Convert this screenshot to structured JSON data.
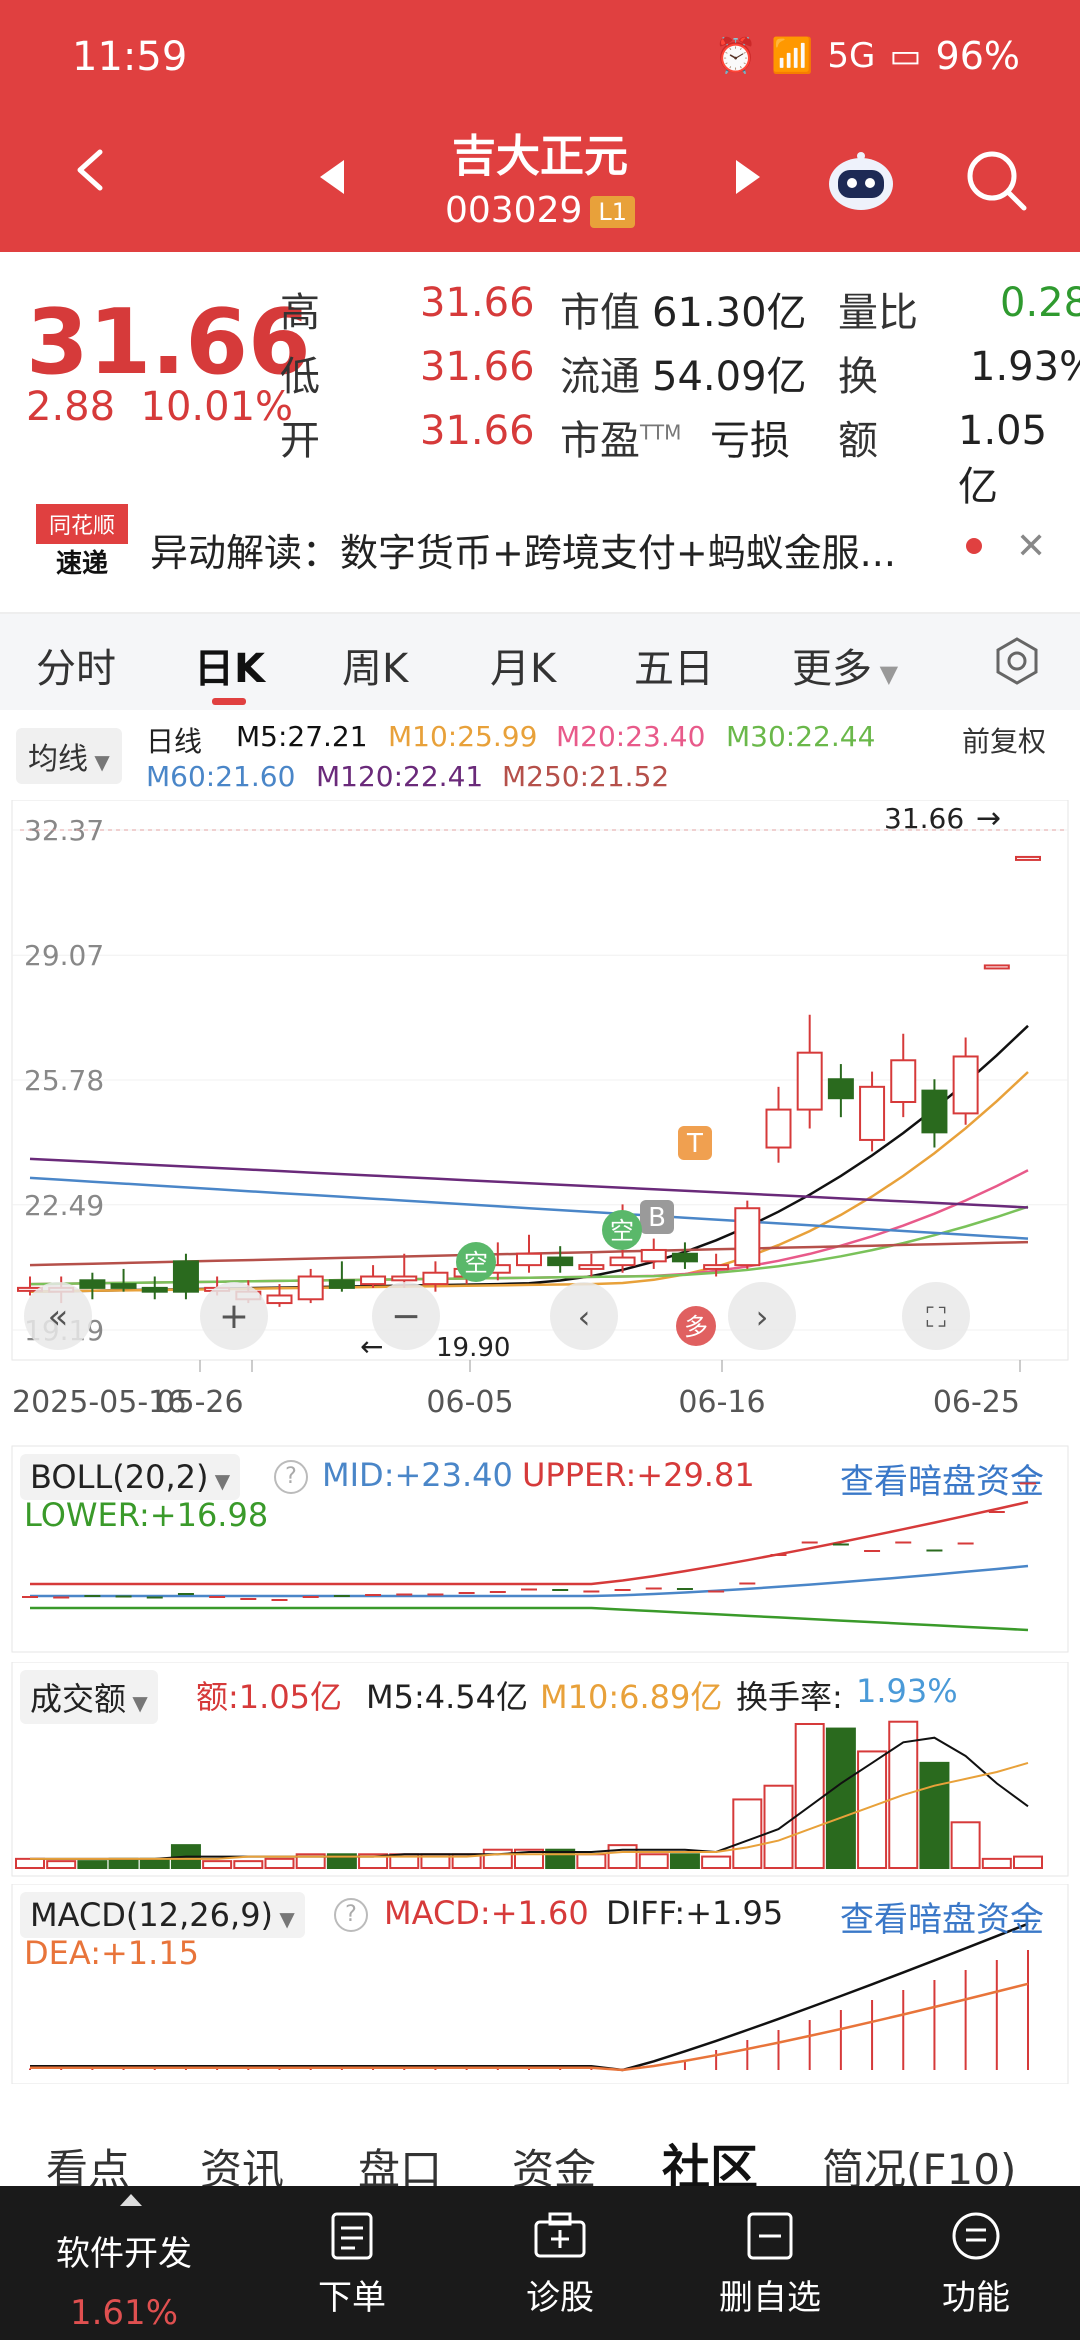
{
  "status": {
    "time": "11:59",
    "network": "5G",
    "battery": "96%"
  },
  "header": {
    "name": "吉大正元",
    "code": "003029",
    "level": "L1"
  },
  "quote": {
    "price": "31.66",
    "change": "2.88",
    "change_pct": "10.01%",
    "high_label": "高",
    "high": "31.66",
    "low_label": "低",
    "low": "31.66",
    "open_label": "开",
    "open": "31.66",
    "mcap_label": "市值",
    "mcap": "61.30亿",
    "float_label": "流通",
    "float": "54.09亿",
    "pe_label": "市盈",
    "pe_tm": "TTM",
    "pe": "亏损",
    "vr_label": "量比",
    "vr": "0.28",
    "turn_label": "换",
    "turn": "1.93%",
    "amt_label": "额",
    "amt": "1.05亿"
  },
  "news": {
    "logo_top": "同花顺",
    "logo_bottom": "速递",
    "text": "异动解读：数字货币+跨境支付+蚂蚁金服..."
  },
  "period_tabs": {
    "t1": "分时",
    "t2": "日K",
    "t3": "周K",
    "t4": "月K",
    "t5": "五日",
    "t6": "更多"
  },
  "ma_legend": {
    "select": "均线",
    "kind": "日线",
    "adjust": "前复权",
    "m5": "M5:27.21",
    "m10": "M10:25.99",
    "m20": "M20:23.40",
    "m30": "M30:22.44",
    "m60": "M60:21.60",
    "m120": "M120:22.41",
    "m250": "M250:21.52"
  },
  "kchart": {
    "y_ticks": [
      "32.37",
      "29.07",
      "25.78",
      "22.49",
      "19.19"
    ],
    "x_ticks": [
      "2025-05-16",
      "05-26",
      "06-05",
      "06-16",
      "06-25"
    ],
    "last_price": "31.66",
    "low_mark": "19.90",
    "badge_t": "T",
    "badge_b": "B",
    "badge_kong": "空",
    "badge_duo": "多",
    "colors": {
      "ma5": "#111111",
      "ma10": "#e8a13a",
      "ma20": "#e85a8a",
      "ma30": "#7ac25a",
      "ma60": "#4a86c8",
      "ma120": "#6a2a7a",
      "ma250": "#b5504a",
      "up": "#d63a3a",
      "down": "#2a6a1e"
    }
  },
  "chart_data": {
    "type": "candlestick",
    "x_ticks": [
      "2025-05-16",
      "05-26",
      "06-05",
      "06-16",
      "06-25"
    ],
    "ylim": [
      19.19,
      32.37
    ],
    "last": 31.66,
    "low": 19.9,
    "ma": {
      "M5": 27.21,
      "M10": 25.99,
      "M20": 23.4,
      "M30": 22.44,
      "M60": 21.6,
      "M120": 22.41,
      "M250": 21.52
    }
  },
  "boll": {
    "select": "BOLL(20,2)",
    "mid": "MID:+23.40",
    "upper": "UPPER:+29.81",
    "lower": "LOWER:+16.98",
    "link": "查看暗盘资金"
  },
  "volume": {
    "select": "成交额",
    "amt": "额:1.05亿",
    "m5": "M5:4.54亿",
    "m10": "M10:6.89亿",
    "turn_label": "换手率:",
    "turn": "1.93%"
  },
  "macd": {
    "select": "MACD(12,26,9)",
    "macd": "MACD:+1.60",
    "diff": "DIFF:+1.95",
    "dea": "DEA:+1.15",
    "link": "查看暗盘资金"
  },
  "bottom_tabs": {
    "t1": "看点",
    "t2": "资讯",
    "t3": "盘口",
    "t4": "资金",
    "t5": "社区",
    "t6": "简况(F10)"
  },
  "bottom_bar": {
    "sector": "软件开发",
    "sector_pct": "1.61%",
    "order": "下单",
    "diagnose": "诊股",
    "remove": "删自选",
    "func": "功能"
  }
}
